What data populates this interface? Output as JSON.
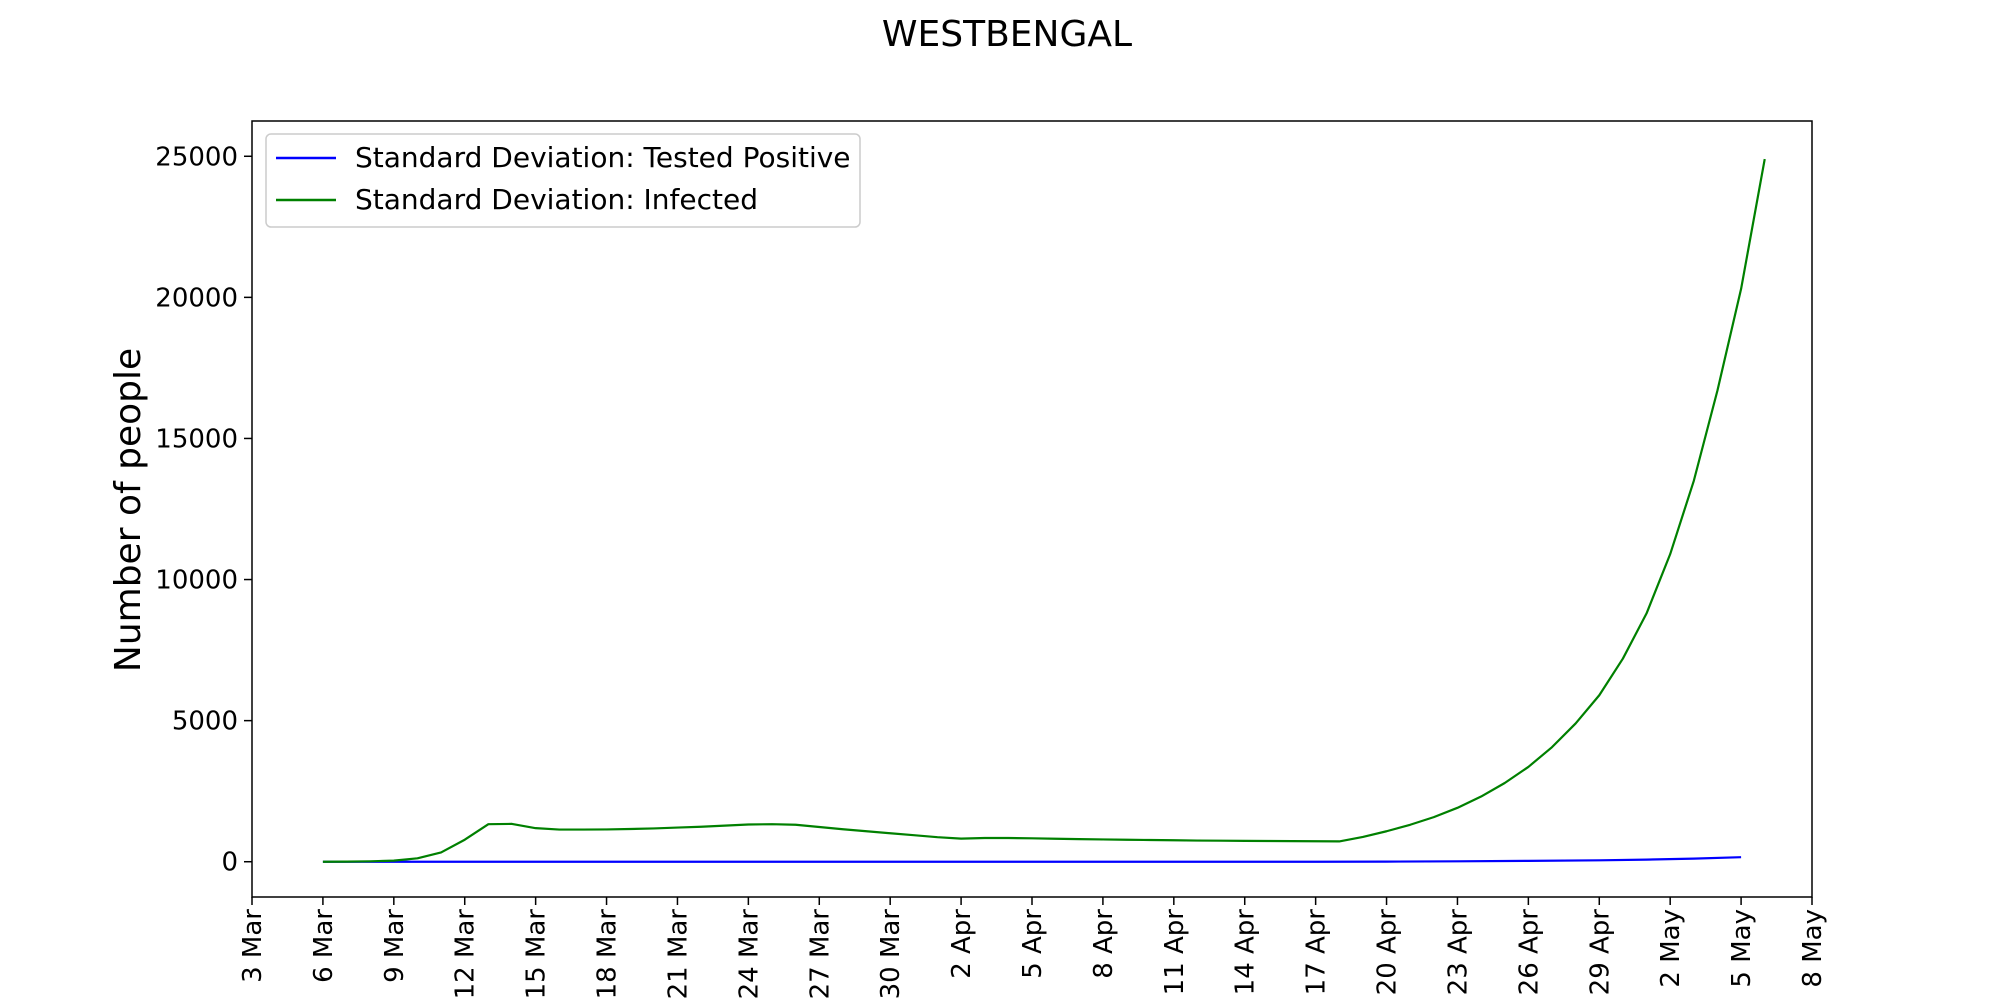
{
  "chart_data": {
    "type": "line",
    "title": "WESTBENGAL",
    "xlabel": "",
    "ylabel": "Number of people",
    "x_ticks": [
      "3 Mar",
      "6 Mar",
      "9 Mar",
      "12 Mar",
      "15 Mar",
      "18 Mar",
      "21 Mar",
      "24 Mar",
      "27 Mar",
      "30 Mar",
      "2 Apr",
      "5 Apr",
      "8 Apr",
      "11 Apr",
      "14 Apr",
      "17 Apr",
      "20 Apr",
      "23 Apr",
      "26 Apr",
      "29 Apr",
      "2 May",
      "5 May",
      "8 May"
    ],
    "y_ticks": [
      "0",
      "5000",
      "10000",
      "15000",
      "20000",
      "25000"
    ],
    "xlim": [
      "2020-03-03",
      "2020-05-08"
    ],
    "ylim": [
      -1250,
      26250
    ],
    "grid": false,
    "legend_position": "top-left",
    "series": [
      {
        "name": "Standard Deviation: Tested Positive",
        "color": "#0000ff",
        "points": [
          [
            "2020-03-06",
            0
          ],
          [
            "2020-03-12",
            0
          ],
          [
            "2020-03-18",
            0
          ],
          [
            "2020-03-24",
            0
          ],
          [
            "2020-03-30",
            0
          ],
          [
            "2020-04-05",
            0
          ],
          [
            "2020-04-11",
            0
          ],
          [
            "2020-04-17",
            0
          ],
          [
            "2020-04-20",
            5
          ],
          [
            "2020-04-23",
            15
          ],
          [
            "2020-04-26",
            30
          ],
          [
            "2020-04-29",
            50
          ],
          [
            "2020-05-01",
            75
          ],
          [
            "2020-05-03",
            110
          ],
          [
            "2020-05-05",
            160
          ]
        ]
      },
      {
        "name": "Standard Deviation: Infected",
        "color": "#008000",
        "points": [
          [
            "2020-03-06",
            0
          ],
          [
            "2020-03-07",
            5
          ],
          [
            "2020-03-08",
            15
          ],
          [
            "2020-03-09",
            40
          ],
          [
            "2020-03-10",
            120
          ],
          [
            "2020-03-11",
            330
          ],
          [
            "2020-03-12",
            780
          ],
          [
            "2020-03-13",
            1330
          ],
          [
            "2020-03-14",
            1340
          ],
          [
            "2020-03-15",
            1190
          ],
          [
            "2020-03-16",
            1140
          ],
          [
            "2020-03-17",
            1140
          ],
          [
            "2020-03-18",
            1145
          ],
          [
            "2020-03-19",
            1160
          ],
          [
            "2020-03-20",
            1180
          ],
          [
            "2020-03-21",
            1210
          ],
          [
            "2020-03-22",
            1240
          ],
          [
            "2020-03-23",
            1280
          ],
          [
            "2020-03-24",
            1320
          ],
          [
            "2020-03-25",
            1330
          ],
          [
            "2020-03-26",
            1310
          ],
          [
            "2020-03-27",
            1230
          ],
          [
            "2020-03-28",
            1150
          ],
          [
            "2020-03-29",
            1080
          ],
          [
            "2020-03-30",
            1010
          ],
          [
            "2020-03-31",
            940
          ],
          [
            "2020-04-01",
            870
          ],
          [
            "2020-04-02",
            820
          ],
          [
            "2020-04-03",
            840
          ],
          [
            "2020-04-04",
            840
          ],
          [
            "2020-04-05",
            830
          ],
          [
            "2020-04-06",
            815
          ],
          [
            "2020-04-07",
            800
          ],
          [
            "2020-04-08",
            790
          ],
          [
            "2020-04-09",
            780
          ],
          [
            "2020-04-10",
            770
          ],
          [
            "2020-04-11",
            760
          ],
          [
            "2020-04-12",
            750
          ],
          [
            "2020-04-13",
            745
          ],
          [
            "2020-04-14",
            740
          ],
          [
            "2020-04-15",
            735
          ],
          [
            "2020-04-16",
            730
          ],
          [
            "2020-04-17",
            725
          ],
          [
            "2020-04-18",
            720
          ],
          [
            "2020-04-19",
            880
          ],
          [
            "2020-04-20",
            1080
          ],
          [
            "2020-04-21",
            1310
          ],
          [
            "2020-04-22",
            1580
          ],
          [
            "2020-04-23",
            1910
          ],
          [
            "2020-04-24",
            2310
          ],
          [
            "2020-04-25",
            2790
          ],
          [
            "2020-04-26",
            3360
          ],
          [
            "2020-04-27",
            4060
          ],
          [
            "2020-04-28",
            4900
          ],
          [
            "2020-04-29",
            5900
          ],
          [
            "2020-04-30",
            7200
          ],
          [
            "2020-05-01",
            8800
          ],
          [
            "2020-05-02",
            10900
          ],
          [
            "2020-05-03",
            13500
          ],
          [
            "2020-05-04",
            16700
          ],
          [
            "2020-05-05",
            20300
          ],
          [
            "2020-05-06",
            24900
          ]
        ]
      }
    ]
  }
}
